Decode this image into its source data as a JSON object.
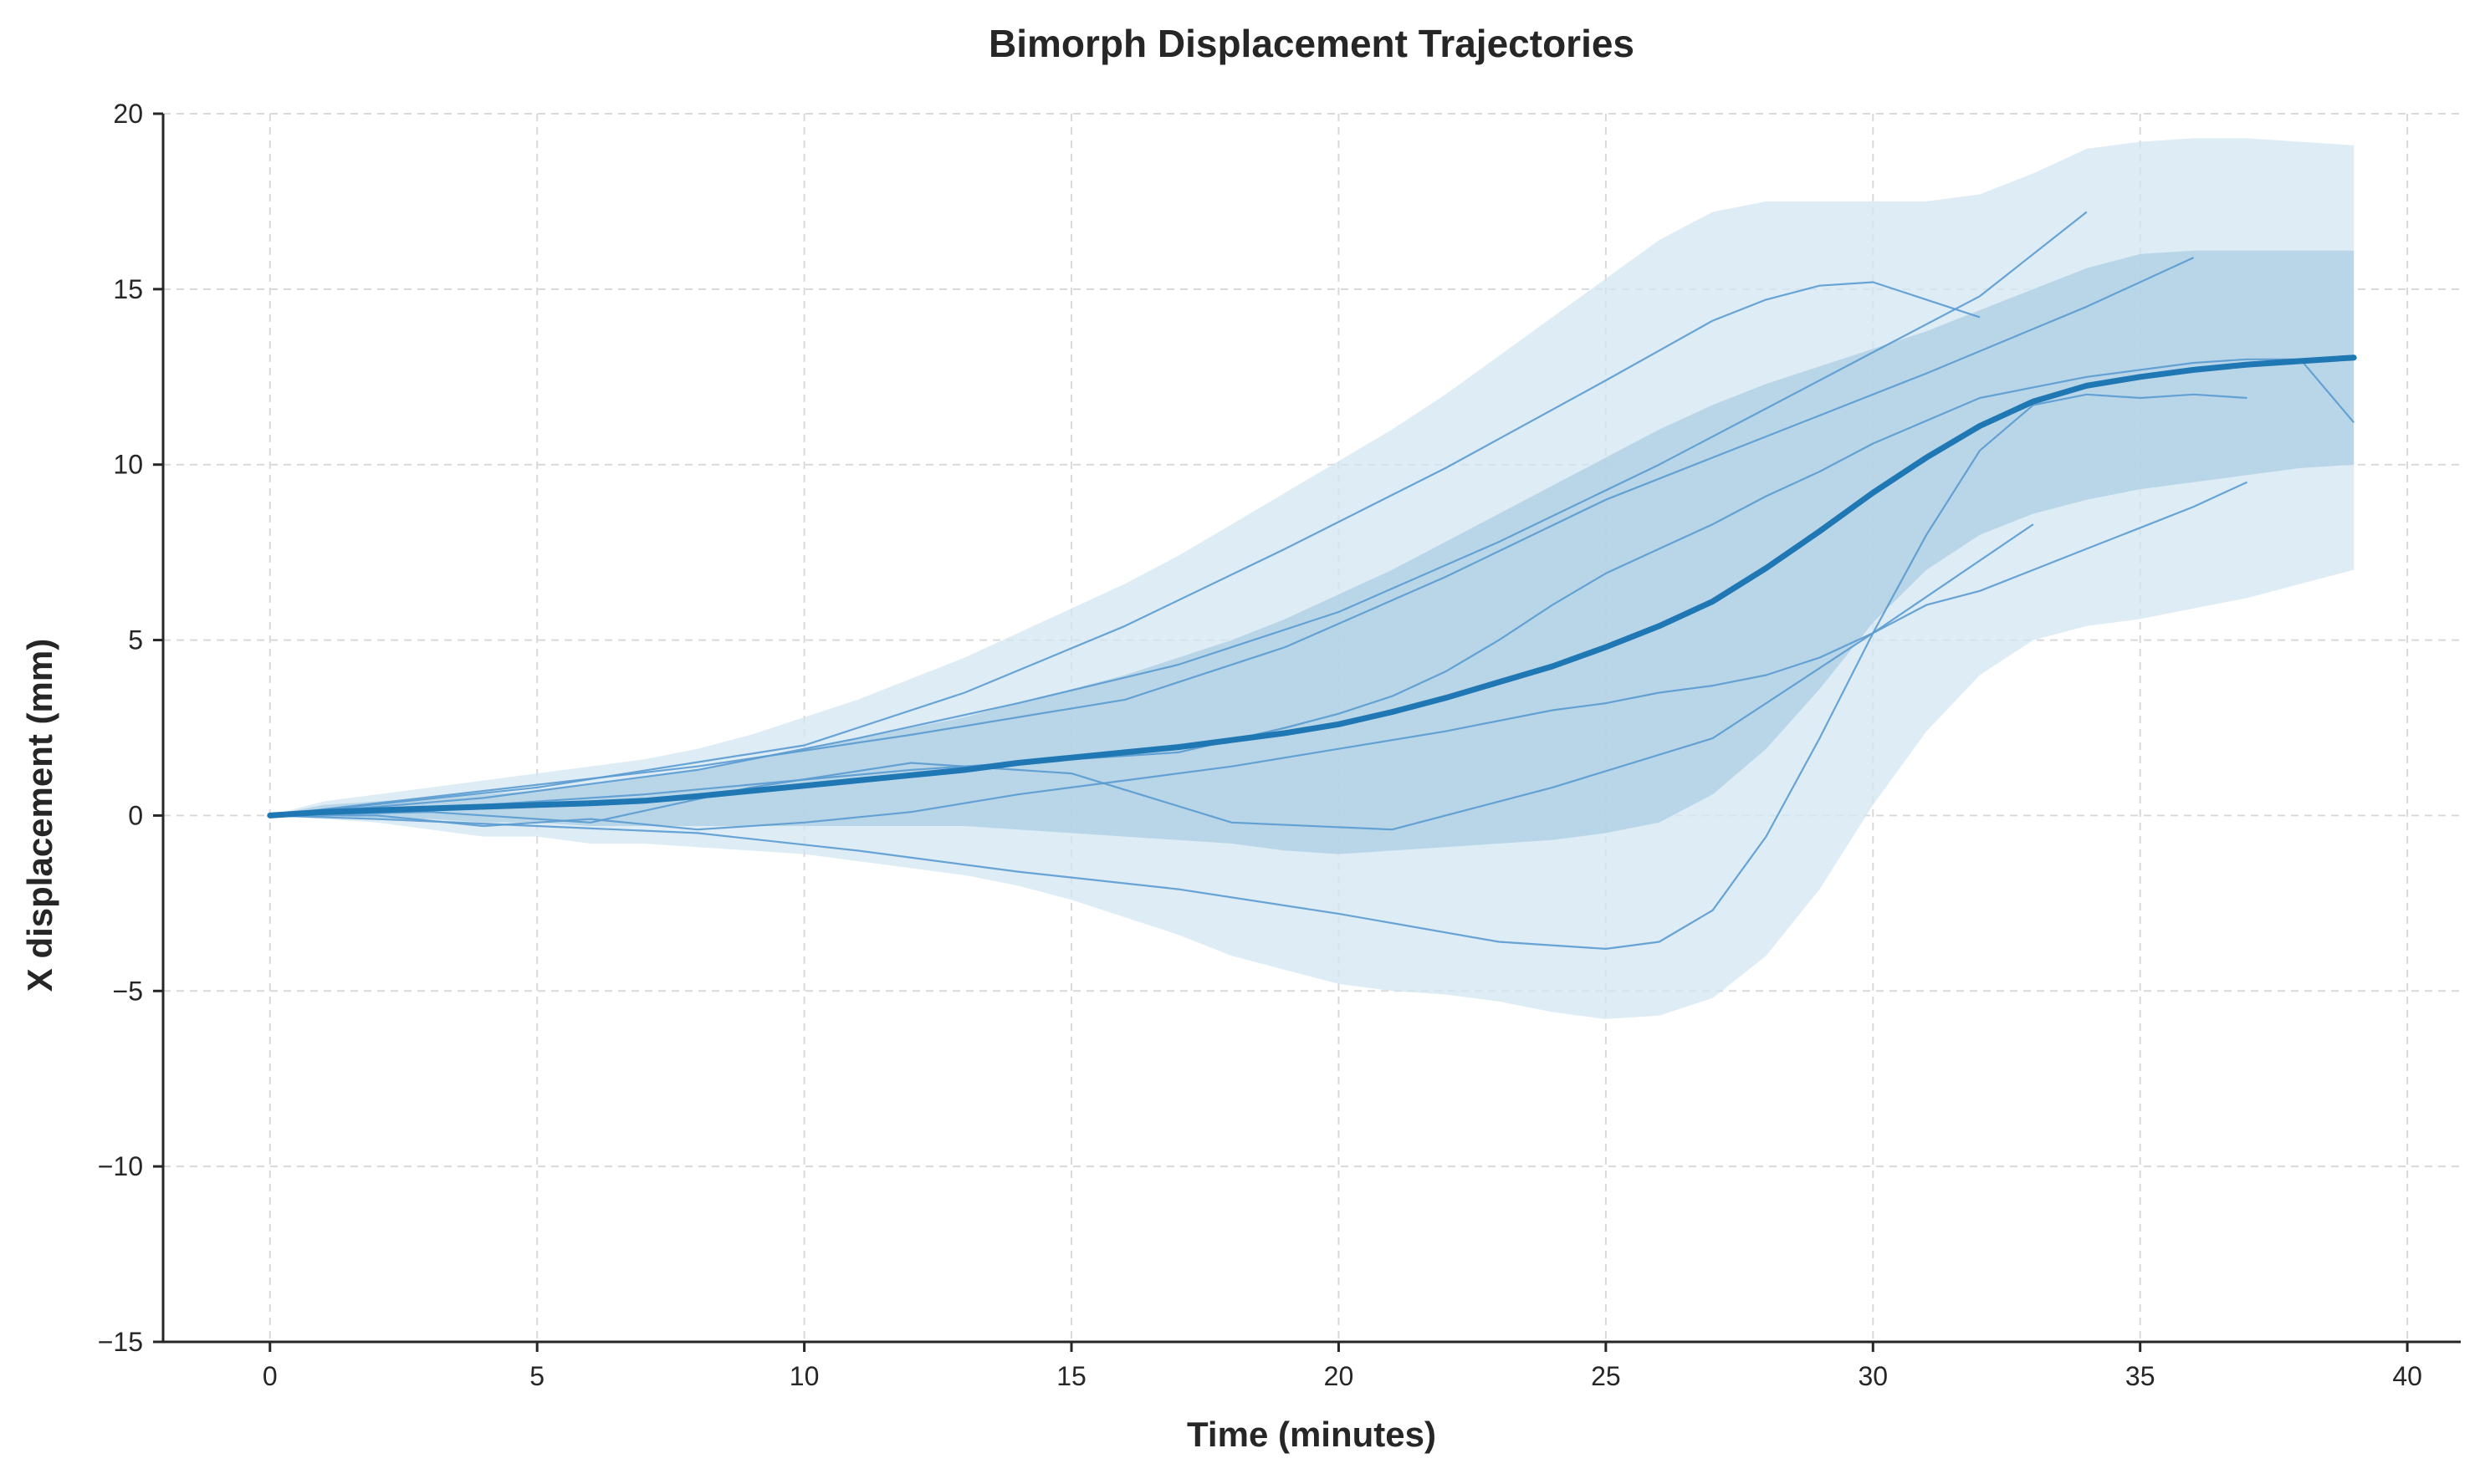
{
  "chart_data": {
    "type": "line",
    "title": "Bimorph Displacement Trajectories",
    "xlabel": "Time (minutes)",
    "ylabel": "X displacement (mm)",
    "xlim": [
      -2,
      41
    ],
    "ylim": [
      -15,
      20
    ],
    "xticks": [
      0,
      5,
      10,
      15,
      20,
      25,
      30,
      35,
      40
    ],
    "yticks": [
      -15,
      -10,
      -5,
      0,
      5,
      10,
      15,
      20
    ],
    "ytick_labels": [
      "−15",
      "−10",
      "−5",
      "0",
      "5",
      "10",
      "15",
      "20"
    ],
    "grid": true,
    "colors": {
      "mean": "#1f77b4",
      "trajectory": "#5a9bd0",
      "outer_band": "#d2e6f1",
      "inner_band": "#a9cde4",
      "axis": "#262626",
      "grid": "#d9d9d9"
    },
    "bands": {
      "outer": {
        "x": [
          0,
          1,
          2,
          3,
          4,
          5,
          6,
          7,
          8,
          9,
          10,
          11,
          12,
          13,
          14,
          15,
          16,
          17,
          18,
          19,
          20,
          21,
          22,
          23,
          24,
          25,
          26,
          27,
          28,
          29,
          30,
          31,
          32,
          33,
          34,
          35,
          36,
          37,
          38,
          39
        ],
        "upper": [
          0,
          0.4,
          0.6,
          0.8,
          1.0,
          1.2,
          1.4,
          1.6,
          1.9,
          2.3,
          2.8,
          3.3,
          3.9,
          4.5,
          5.2,
          5.9,
          6.6,
          7.4,
          8.3,
          9.2,
          10.1,
          11.0,
          12.0,
          13.1,
          14.2,
          15.3,
          16.4,
          17.2,
          17.5,
          17.5,
          17.5,
          17.5,
          17.7,
          18.3,
          19.0,
          19.2,
          19.3,
          19.3,
          19.2,
          19.1
        ],
        "lower": [
          0,
          -0.1,
          -0.2,
          -0.4,
          -0.6,
          -0.6,
          -0.8,
          -0.8,
          -0.9,
          -1.0,
          -1.1,
          -1.3,
          -1.5,
          -1.7,
          -2.0,
          -2.4,
          -2.9,
          -3.4,
          -4.0,
          -4.4,
          -4.8,
          -5.0,
          -5.1,
          -5.3,
          -5.6,
          -5.8,
          -5.7,
          -5.2,
          -4.0,
          -2.1,
          0.3,
          2.4,
          4.0,
          5.0,
          5.4,
          5.6,
          5.9,
          6.2,
          6.6,
          7.0
        ]
      },
      "inner": {
        "x": [
          0,
          1,
          2,
          3,
          4,
          5,
          6,
          7,
          8,
          9,
          10,
          11,
          12,
          13,
          14,
          15,
          16,
          17,
          18,
          19,
          20,
          21,
          22,
          23,
          24,
          25,
          26,
          27,
          28,
          29,
          30,
          31,
          32,
          33,
          34,
          35,
          36,
          37,
          38,
          39
        ],
        "upper": [
          0,
          0.3,
          0.4,
          0.5,
          0.6,
          0.7,
          0.9,
          1.1,
          1.3,
          1.6,
          1.9,
          2.2,
          2.5,
          2.8,
          3.2,
          3.6,
          4.0,
          4.5,
          5.0,
          5.6,
          6.3,
          7.0,
          7.8,
          8.6,
          9.4,
          10.2,
          11.0,
          11.7,
          12.3,
          12.8,
          13.3,
          13.8,
          14.4,
          15.0,
          15.6,
          16.0,
          16.1,
          16.1,
          16.1,
          16.1
        ],
        "lower": [
          0,
          0.0,
          -0.1,
          -0.1,
          -0.2,
          -0.2,
          -0.3,
          -0.3,
          -0.3,
          -0.3,
          -0.3,
          -0.3,
          -0.3,
          -0.3,
          -0.4,
          -0.5,
          -0.6,
          -0.7,
          -0.8,
          -1.0,
          -1.1,
          -1.0,
          -0.9,
          -0.8,
          -0.7,
          -0.5,
          -0.2,
          0.6,
          1.9,
          3.6,
          5.5,
          7.0,
          8.0,
          8.6,
          9.0,
          9.3,
          9.5,
          9.7,
          9.9,
          10.0
        ]
      }
    },
    "trajectories": [
      {
        "x": [
          0,
          3,
          6,
          9,
          12,
          15,
          18,
          21,
          24,
          27,
          30,
          33
        ],
        "y": [
          0,
          0.1,
          -0.2,
          0.8,
          1.5,
          1.2,
          -0.2,
          -0.4,
          0.8,
          2.2,
          5.2,
          8.3
        ]
      },
      {
        "x": [
          0,
          4,
          8,
          11,
          14,
          17,
          20,
          23,
          26,
          28,
          30,
          32,
          34
        ],
        "y": [
          0,
          0.5,
          1.3,
          2.2,
          3.2,
          4.3,
          5.8,
          7.8,
          10.0,
          11.6,
          13.2,
          14.8,
          17.2
        ]
      },
      {
        "x": [
          0,
          5,
          10,
          13,
          16,
          19,
          22,
          25,
          27,
          28,
          29,
          30,
          32
        ],
        "y": [
          0,
          0.8,
          2.0,
          3.5,
          5.4,
          7.6,
          9.9,
          12.4,
          14.1,
          14.7,
          15.1,
          15.2,
          14.2
        ]
      },
      {
        "x": [
          0,
          4,
          8,
          12,
          16,
          19,
          22,
          25,
          28,
          31,
          34,
          36
        ],
        "y": [
          0,
          0.7,
          1.4,
          2.3,
          3.3,
          4.8,
          6.8,
          9.0,
          10.8,
          12.6,
          14.5,
          15.9
        ]
      },
      {
        "x": [
          0,
          2,
          4,
          6,
          8,
          10,
          12,
          14,
          16,
          18,
          20,
          22,
          24,
          25,
          26,
          27,
          28,
          29,
          30,
          31,
          32,
          33,
          34,
          35,
          36,
          37
        ],
        "y": [
          0,
          0.0,
          -0.3,
          -0.1,
          -0.4,
          -0.2,
          0.1,
          0.6,
          1.0,
          1.4,
          1.9,
          2.4,
          3.0,
          3.2,
          3.5,
          3.7,
          4.0,
          4.5,
          5.2,
          6.0,
          6.4,
          7.0,
          7.6,
          8.2,
          8.8,
          9.5
        ]
      },
      {
        "x": [
          0,
          2,
          5,
          8,
          11,
          14,
          17,
          20,
          23,
          25,
          26,
          27,
          28,
          29,
          30,
          31,
          32,
          33,
          34,
          35,
          36,
          37
        ],
        "y": [
          0,
          -0.1,
          -0.3,
          -0.5,
          -1.0,
          -1.6,
          -2.1,
          -2.8,
          -3.6,
          -3.8,
          -3.6,
          -2.7,
          -0.6,
          2.2,
          5.2,
          8.0,
          10.4,
          11.7,
          12.0,
          11.9,
          12.0,
          11.9
        ]
      },
      {
        "x": [
          0,
          3,
          7,
          12,
          15,
          17,
          19,
          20,
          21,
          22,
          23,
          24,
          25,
          26,
          27,
          28,
          29,
          30,
          32,
          34,
          36,
          37,
          38,
          39
        ],
        "y": [
          0,
          0.2,
          0.6,
          1.3,
          1.6,
          1.8,
          2.5,
          2.9,
          3.4,
          4.1,
          5.0,
          6.0,
          6.9,
          7.6,
          8.3,
          9.1,
          9.8,
          10.6,
          11.9,
          12.5,
          12.9,
          13.0,
          13.0,
          11.2
        ]
      }
    ],
    "mean": {
      "x": [
        0,
        1,
        2,
        3,
        4,
        5,
        6,
        7,
        8,
        9,
        10,
        11,
        12,
        13,
        14,
        15,
        16,
        17,
        18,
        19,
        20,
        21,
        22,
        23,
        24,
        25,
        26,
        27,
        28,
        29,
        30,
        31,
        32,
        33,
        34,
        35,
        36,
        37,
        38,
        39
      ],
      "y": [
        0,
        0.1,
        0.15,
        0.2,
        0.25,
        0.3,
        0.35,
        0.42,
        0.55,
        0.7,
        0.85,
        1.0,
        1.15,
        1.3,
        1.5,
        1.65,
        1.8,
        1.95,
        2.15,
        2.35,
        2.6,
        2.95,
        3.35,
        3.8,
        4.25,
        4.8,
        5.4,
        6.1,
        7.05,
        8.1,
        9.2,
        10.2,
        11.1,
        11.8,
        12.25,
        12.5,
        12.7,
        12.85,
        12.95,
        13.05
      ]
    }
  }
}
